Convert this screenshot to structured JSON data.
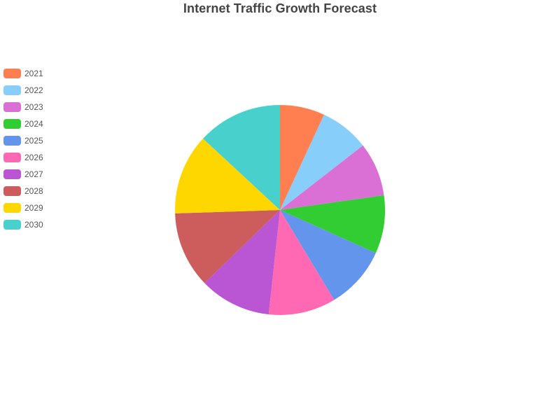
{
  "chart_data": {
    "type": "pie",
    "title": "Internet Traffic Growth Forecast",
    "legend_position": "left",
    "categories": [
      "2021",
      "2022",
      "2023",
      "2024",
      "2025",
      "2026",
      "2027",
      "2028",
      "2029",
      "2030"
    ],
    "values": [
      150,
      165,
      180,
      195,
      210,
      225,
      240,
      255,
      270,
      285
    ],
    "colors": [
      "#FF7F50",
      "#87CEFA",
      "#DA70D6",
      "#32CD32",
      "#6495ED",
      "#FF69B4",
      "#BA55D3",
      "#CD5C5C",
      "#FFD700",
      "#48D1CC"
    ]
  }
}
